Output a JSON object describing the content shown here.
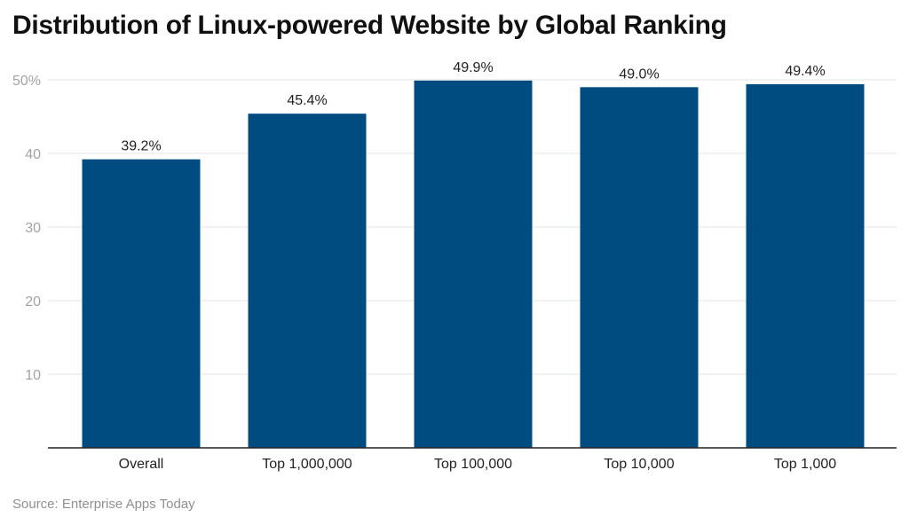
{
  "title": "Distribution of Linux-powered Website by Global Ranking",
  "source": "Source: Enterprise Apps Today",
  "colors": {
    "bar": "#004b80",
    "grid": "#e4e4e4",
    "axis": "#222222"
  },
  "chart_data": {
    "type": "bar",
    "title": "Distribution of Linux-powered Website by Global Ranking",
    "xlabel": "",
    "ylabel": "",
    "categories": [
      "Overall",
      "Top 1,000,000",
      "Top 100,000",
      "Top 10,000",
      "Top 1,000"
    ],
    "values": [
      39.2,
      45.4,
      49.9,
      49.0,
      49.4
    ],
    "data_labels": [
      "39.2%",
      "45.4%",
      "49.9%",
      "49.0%",
      "49.4%"
    ],
    "ylim": [
      0,
      50
    ],
    "yticks": [
      10,
      20,
      30,
      40,
      50
    ],
    "ytick_labels": [
      "10",
      "20",
      "30",
      "40",
      "50%"
    ],
    "grid": true,
    "legend": "none"
  }
}
